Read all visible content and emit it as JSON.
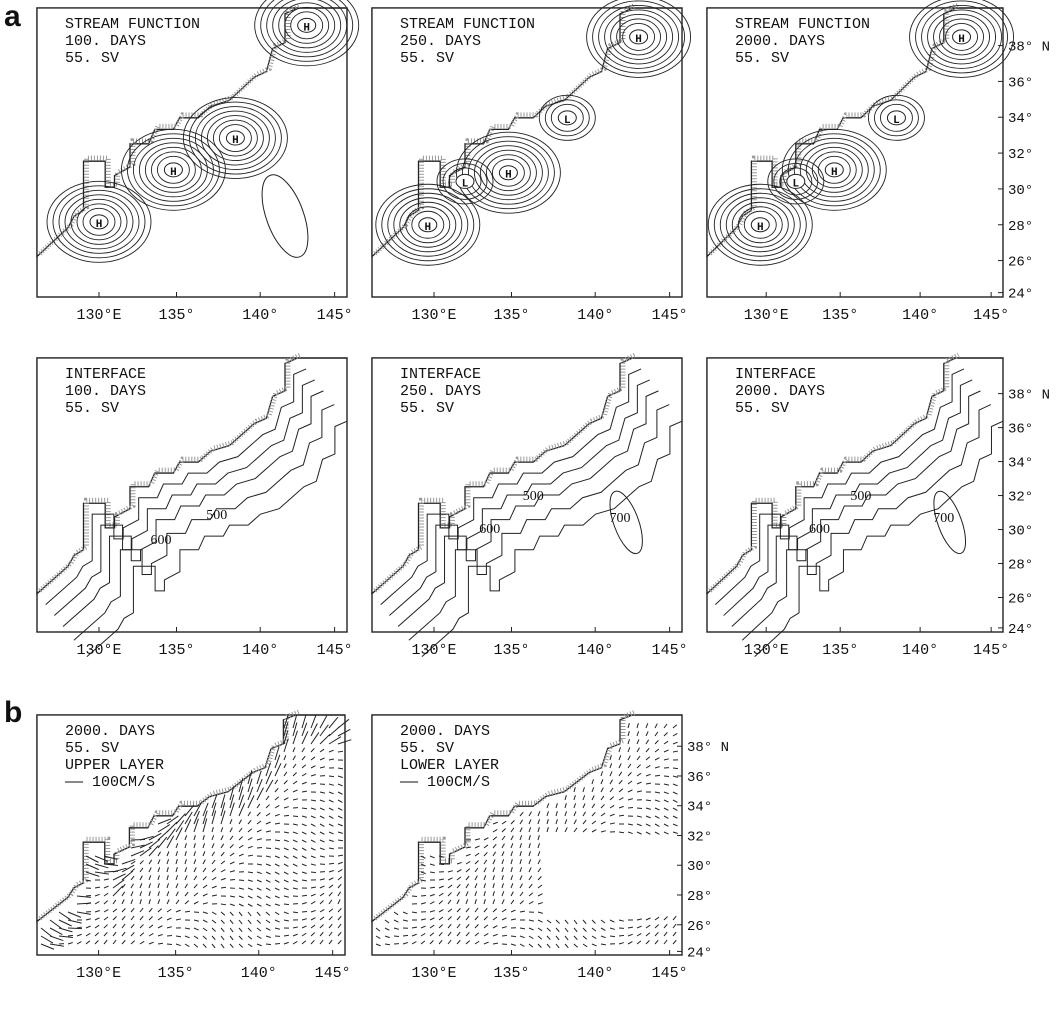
{
  "figure": {
    "labels": [
      "a",
      "b"
    ],
    "panels": [
      {
        "text": [
          "STREAM FUNCTION",
          "100.  DAYS",
          "55.    SV"
        ],
        "contour_labels": [
          "H",
          "H",
          "H",
          "H"
        ]
      },
      {
        "text": [
          "STREAM FUNCTION",
          "250.  DAYS",
          "55.    SV"
        ],
        "contour_labels": [
          "H",
          "H",
          "H",
          "L",
          "L"
        ]
      },
      {
        "text": [
          "STREAM FUNCTION",
          "2000. DAYS",
          "55.    SV"
        ],
        "contour_labels": [
          "H",
          "H",
          "H",
          "L",
          "L"
        ]
      },
      {
        "text": [
          "INTERFACE",
          "100.  DAYS",
          "55.    SV"
        ],
        "contour_labels": [
          "500",
          "600"
        ]
      },
      {
        "text": [
          "INTERFACE",
          "250.  DAYS",
          "55.    SV"
        ],
        "contour_labels": [
          "500",
          "600",
          "700"
        ]
      },
      {
        "text": [
          "INTERFACE",
          "2000. DAYS",
          "55.    SV"
        ],
        "contour_labels": [
          "500",
          "600",
          "700"
        ]
      },
      {
        "text": [
          "2000. DAYS",
          "55.    SV",
          "UPPER LAYER",
          "—— 100CM/S"
        ],
        "contour_labels": []
      },
      {
        "text": [
          "2000. DAYS",
          "55.    SV",
          "LOWER LAYER",
          "—— 100CM/S"
        ],
        "contour_labels": []
      }
    ],
    "x_tick_labels": [
      "130°E",
      "135°",
      "140°",
      "145°"
    ],
    "y_tick_labels": [
      "38° N",
      "36°",
      "34°",
      "32°",
      "30°",
      "28°",
      "26°",
      "24°"
    ]
  }
}
